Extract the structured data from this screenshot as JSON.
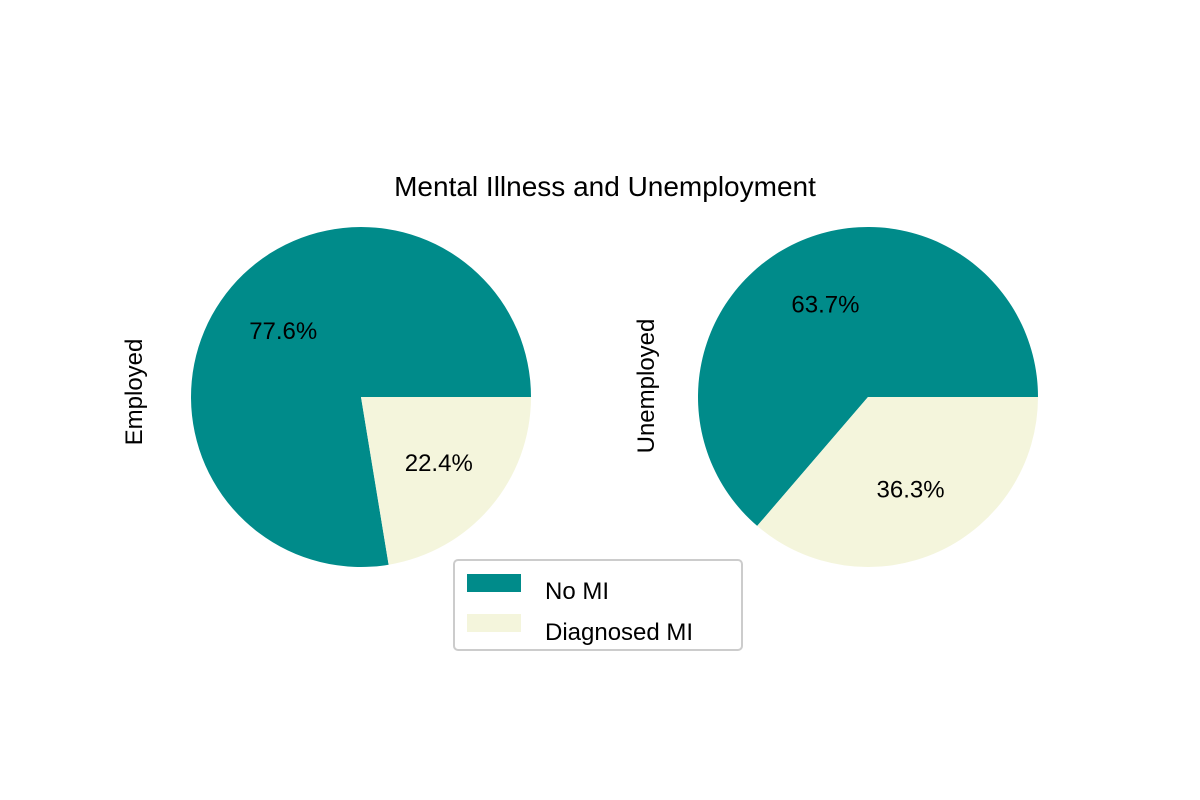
{
  "chart_data": {
    "type": "pie",
    "title": "Mental Illness and Unemployment",
    "categories": [
      "No MI",
      "Diagnosed MI"
    ],
    "colors": [
      "#008b8a",
      "#f4f5dc"
    ],
    "charts": [
      {
        "ylabel": "Employed",
        "values": [
          77.6,
          22.4
        ],
        "labels": [
          "77.6%",
          "22.4%"
        ]
      },
      {
        "ylabel": "Unemployed",
        "values": [
          63.7,
          36.3
        ],
        "labels": [
          "63.7%",
          "36.3%"
        ]
      }
    ],
    "legend": {
      "entries": [
        "No MI",
        "Diagnosed MI"
      ],
      "placement": "bottom-center"
    }
  }
}
